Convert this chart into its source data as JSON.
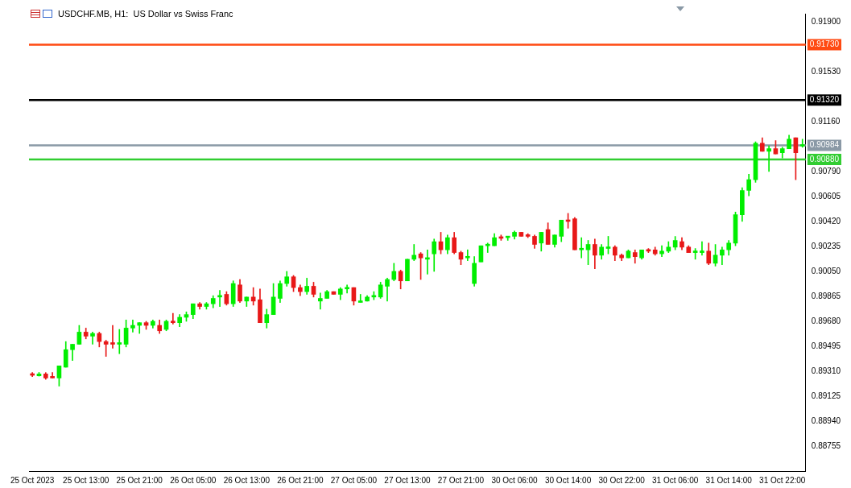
{
  "chart_data": {
    "type": "candlestick",
    "title": "USDCHF.MB, H1:  US Dollar vs Swiss Franc",
    "categories": [
      "25 Oct 2023",
      null,
      null,
      null,
      null,
      null,
      null,
      null,
      "25 Oct 13:00",
      null,
      null,
      null,
      null,
      null,
      null,
      null,
      "25 Oct 21:00",
      null,
      null,
      null,
      null,
      null,
      null,
      null,
      "26 Oct 05:00",
      null,
      null,
      null,
      null,
      null,
      null,
      null,
      "26 Oct 13:00",
      null,
      null,
      null,
      null,
      null,
      null,
      null,
      "26 Oct 21:00",
      null,
      null,
      null,
      null,
      null,
      null,
      null,
      "27 Oct 05:00",
      null,
      null,
      null,
      null,
      null,
      null,
      null,
      "27 Oct 13:00",
      null,
      null,
      null,
      null,
      null,
      null,
      null,
      "27 Oct 21:00",
      null,
      null,
      null,
      null,
      null,
      null,
      null,
      "30 Oct 06:00",
      null,
      null,
      null,
      null,
      null,
      null,
      null,
      "30 Oct 14:00",
      null,
      null,
      null,
      null,
      null,
      null,
      null,
      "30 Oct 22:00",
      null,
      null,
      null,
      null,
      null,
      null,
      null,
      "31 Oct 06:00",
      null,
      null,
      null,
      null,
      null,
      null,
      null,
      "31 Oct 14:00",
      null,
      null,
      null,
      null,
      null,
      null,
      null,
      "31 Oct 22:00",
      null,
      null,
      null
    ],
    "ohlc": [
      [
        0.8929,
        0.893,
        0.8927,
        0.8928
      ],
      [
        0.89276,
        0.89301,
        0.89274,
        0.8929
      ],
      [
        0.8929,
        0.893,
        0.8925,
        0.8926
      ],
      [
        0.8927,
        0.893,
        0.8926,
        0.8926
      ],
      [
        0.8926,
        0.8935,
        0.892,
        0.8935
      ],
      [
        0.8934,
        0.8953,
        0.8934,
        0.8947
      ],
      [
        0.8947,
        0.8951,
        0.8939,
        0.8951
      ],
      [
        0.8951,
        0.8965,
        0.8951,
        0.896
      ],
      [
        0.896,
        0.8963,
        0.8955,
        0.8957
      ],
      [
        0.8957,
        0.896,
        0.8951,
        0.8959
      ],
      [
        0.8959,
        0.896,
        0.8949,
        0.8953
      ],
      [
        0.8953,
        0.8954,
        0.8942,
        0.8951
      ],
      [
        0.8952,
        0.8965,
        0.8948,
        0.8951
      ],
      [
        0.8951,
        0.8962,
        0.8944,
        0.8952
      ],
      [
        0.8951,
        0.8969,
        0.8949,
        0.8963
      ],
      [
        0.8963,
        0.8969,
        0.896,
        0.8965
      ],
      [
        0.8965,
        0.8967,
        0.8959,
        0.8967
      ],
      [
        0.8967,
        0.8968,
        0.8962,
        0.8965
      ],
      [
        0.8965,
        0.8969,
        0.8963,
        0.8968
      ],
      [
        0.8965,
        0.8969,
        0.8959,
        0.8961
      ],
      [
        0.8962,
        0.8969,
        0.8961,
        0.8968
      ],
      [
        0.8968,
        0.8974,
        0.8966,
        0.8967
      ],
      [
        0.8967,
        0.8973,
        0.8964,
        0.8971
      ],
      [
        0.8971,
        0.8975,
        0.8968,
        0.8973
      ],
      [
        0.8973,
        0.8981,
        0.897,
        0.8981
      ],
      [
        0.8981,
        0.8982,
        0.8977,
        0.8979
      ],
      [
        0.8979,
        0.8982,
        0.8977,
        0.8981
      ],
      [
        0.8981,
        0.8987,
        0.8978,
        0.8985
      ],
      [
        0.8986,
        0.8991,
        0.8979,
        0.8987
      ],
      [
        0.8988,
        0.899,
        0.898,
        0.8981
      ],
      [
        0.8981,
        0.8998,
        0.8979,
        0.8996
      ],
      [
        0.8995,
        0.8999,
        0.8982,
        0.8983
      ],
      [
        0.8983,
        0.8986,
        0.8979,
        0.8986
      ],
      [
        0.8986,
        0.8993,
        0.898,
        0.8983
      ],
      [
        0.8984,
        0.8992,
        0.8967,
        0.8967
      ],
      [
        0.8967,
        0.8977,
        0.8963,
        0.8973
      ],
      [
        0.8973,
        0.8996,
        0.8973,
        0.8986
      ],
      [
        0.8985,
        0.8998,
        0.8982,
        0.8996
      ],
      [
        0.8996,
        0.9005,
        0.8994,
        0.9001
      ],
      [
        0.9001,
        0.9002,
        0.899,
        0.8993
      ],
      [
        0.8993,
        0.8995,
        0.8987,
        0.899
      ],
      [
        0.899,
        0.9,
        0.8988,
        0.8994
      ],
      [
        0.8994,
        0.8997,
        0.8986,
        0.8988
      ],
      [
        0.8983,
        0.8989,
        0.8977,
        0.8985
      ],
      [
        0.8985,
        0.8991,
        0.8985,
        0.899
      ],
      [
        0.899,
        0.899,
        0.8988,
        0.8988
      ],
      [
        0.8988,
        0.8993,
        0.8984,
        0.8992
      ],
      [
        0.8992,
        0.8995,
        0.8989,
        0.8993
      ],
      [
        0.8993,
        0.8993,
        0.898,
        0.8983
      ],
      [
        0.8982,
        0.8988,
        0.8982,
        0.8983
      ],
      [
        0.8983,
        0.8987,
        0.8983,
        0.8986
      ],
      [
        0.8986,
        0.899,
        0.8984,
        0.8987
      ],
      [
        0.8986,
        0.8997,
        0.8985,
        0.8995
      ],
      [
        0.8994,
        0.9,
        0.8983,
        0.8999
      ],
      [
        0.8999,
        0.9011,
        0.8998,
        0.9005
      ],
      [
        0.9005,
        0.9006,
        0.8992,
        0.8998
      ],
      [
        0.8998,
        0.9014,
        0.8998,
        0.9014
      ],
      [
        0.9014,
        0.9025,
        0.9013,
        0.9017
      ],
      [
        0.9018,
        0.9019,
        0.8999,
        0.9015
      ],
      [
        0.9014,
        0.9021,
        0.9003,
        0.9015
      ],
      [
        0.9018,
        0.9029,
        0.9005,
        0.9027
      ],
      [
        0.9027,
        0.9034,
        0.9018,
        0.9021
      ],
      [
        0.9021,
        0.9032,
        0.9018,
        0.903
      ],
      [
        0.903,
        0.9034,
        0.9018,
        0.9019
      ],
      [
        0.9019,
        0.902,
        0.901,
        0.9014
      ],
      [
        0.9015,
        0.9021,
        0.9013,
        0.9016
      ],
      [
        0.8996,
        0.9016,
        0.8994,
        0.9011
      ],
      [
        0.9012,
        0.9024,
        0.9012,
        0.9024
      ],
      [
        0.9024,
        0.9026,
        0.9019,
        0.90245
      ],
      [
        0.9024,
        0.9033,
        0.9024,
        0.903
      ],
      [
        0.903,
        0.9032,
        0.9028,
        0.90295
      ],
      [
        0.903,
        0.9031,
        0.9028,
        0.9031
      ],
      [
        0.9031,
        0.9035,
        0.9029,
        0.9034
      ],
      [
        0.9034,
        0.9034,
        0.9031,
        0.9031
      ],
      [
        0.9032,
        0.9033,
        0.903,
        0.9031
      ],
      [
        0.9031,
        0.9032,
        0.9022,
        0.9025
      ],
      [
        0.9026,
        0.9034,
        0.902,
        0.9034
      ],
      [
        0.9036,
        0.9041,
        0.9025,
        0.9025
      ],
      [
        0.9025,
        0.9032,
        0.9023,
        0.9032
      ],
      [
        0.9031,
        0.9043,
        0.9027,
        0.9043
      ],
      [
        0.9043,
        0.9048,
        0.9037,
        0.9042
      ],
      [
        0.9044,
        0.9045,
        0.9021,
        0.9021
      ],
      [
        0.9021,
        0.903,
        0.9015,
        0.9022
      ],
      [
        0.9021,
        0.9028,
        0.901,
        0.9025
      ],
      [
        0.9025,
        0.9029,
        0.9007,
        0.9017
      ],
      [
        0.9017,
        0.9025,
        0.9014,
        0.9023
      ],
      [
        0.9022,
        0.9031,
        0.9018,
        0.9023
      ],
      [
        0.9023,
        0.9024,
        0.9013,
        0.9017
      ],
      [
        0.9017,
        0.9018,
        0.9013,
        0.9015
      ],
      [
        0.9015,
        0.9021,
        0.9015,
        0.902
      ],
      [
        0.9019,
        0.9021,
        0.9011,
        0.9016
      ],
      [
        0.9015,
        0.9021,
        0.9014,
        0.9021
      ],
      [
        0.9021,
        0.9022,
        0.9019,
        0.902
      ],
      [
        0.9021,
        0.9023,
        0.9017,
        0.9018
      ],
      [
        0.9018,
        0.9024,
        0.9016,
        0.902
      ],
      [
        0.902,
        0.9027,
        0.9019,
        0.9023
      ],
      [
        0.9023,
        0.9031,
        0.9021,
        0.9028
      ],
      [
        0.9027,
        0.903,
        0.9021,
        0.9023
      ],
      [
        0.9023,
        0.9024,
        0.9019,
        0.9019
      ],
      [
        0.9019,
        0.9022,
        0.9014,
        0.90195
      ],
      [
        0.9019,
        0.9027,
        0.9017,
        0.902
      ],
      [
        0.902,
        0.9026,
        0.901,
        0.9011
      ],
      [
        0.9011,
        0.9025,
        0.9009,
        0.9017
      ],
      [
        0.9017,
        0.9023,
        0.901,
        0.9021
      ],
      [
        0.9021,
        0.9028,
        0.9017,
        0.9026
      ],
      [
        0.9026,
        0.9049,
        0.9024,
        0.9047
      ],
      [
        0.9047,
        0.9067,
        0.9042,
        0.9065
      ],
      [
        0.9065,
        0.9077,
        0.9061,
        0.9073
      ],
      [
        0.9073,
        0.9101,
        0.9071,
        0.91
      ],
      [
        0.91,
        0.9104,
        0.9094,
        0.9094
      ],
      [
        0.9094,
        0.9098,
        0.9079,
        0.9096
      ],
      [
        0.9096,
        0.9102,
        0.9092,
        0.9092
      ],
      [
        0.9093,
        0.9097,
        0.9089,
        0.9096
      ],
      [
        0.9096,
        0.9106,
        0.9096,
        0.9103
      ],
      [
        0.9104,
        0.9104,
        0.9073,
        0.9093
      ],
      [
        0.90978,
        0.9103,
        0.9097,
        0.90984
      ]
    ],
    "ylim": [
      0.8857,
      0.9196
    ],
    "yticks": [
      {
        "value": 0.919,
        "label": "0.91900"
      },
      {
        "value": 0.9153,
        "label": "0.91530"
      },
      {
        "value": 0.9116,
        "label": "0.91160"
      },
      {
        "value": 0.90975,
        "label": null
      },
      {
        "value": 0.9079,
        "label": "0.90790"
      },
      {
        "value": 0.90605,
        "label": "0.90605"
      },
      {
        "value": 0.9042,
        "label": "0.90420"
      },
      {
        "value": 0.90235,
        "label": "0.90235"
      },
      {
        "value": 0.9005,
        "label": "0.90050"
      },
      {
        "value": 0.89865,
        "label": "0.89865"
      },
      {
        "value": 0.8968,
        "label": "0.89680"
      },
      {
        "value": 0.89495,
        "label": "0.89495"
      },
      {
        "value": 0.8931,
        "label": "0.89310"
      },
      {
        "value": 0.89125,
        "label": "0.89125"
      },
      {
        "value": 0.8894,
        "label": "0.88940"
      },
      {
        "value": 0.88755,
        "label": "0.88755"
      }
    ],
    "ref_lines": [
      {
        "axis": "y",
        "value": 0.9173,
        "label": "0.91730",
        "color": "#ff4a12"
      },
      {
        "axis": "y",
        "value": 0.9132,
        "label": "0.91320",
        "color": "#000000"
      },
      {
        "axis": "y",
        "value": 0.90984,
        "label": "0.90984",
        "color": "#8a99a6"
      },
      {
        "axis": "y",
        "value": 0.9088,
        "label": "0.90880",
        "color": "#32cd32"
      }
    ]
  }
}
